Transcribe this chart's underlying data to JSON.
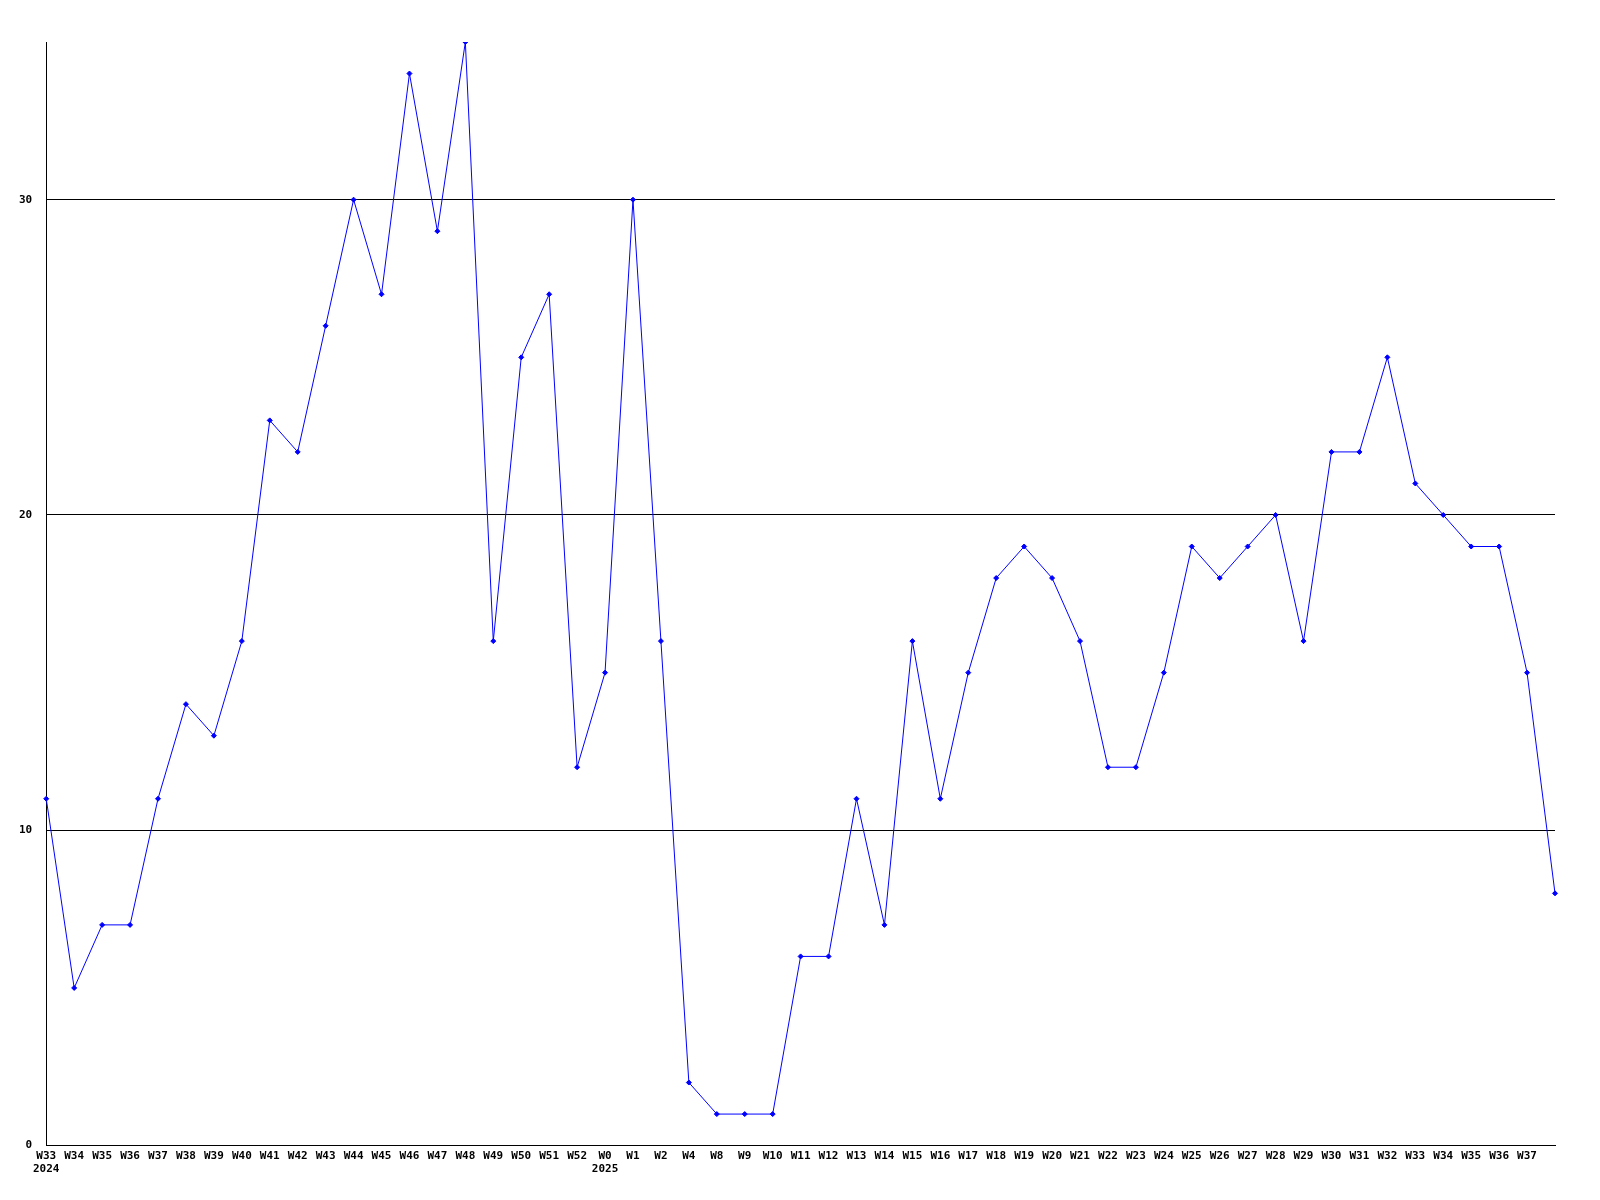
{
  "chart_data": {
    "type": "line",
    "categories": [
      "W33\n2024",
      "W34",
      "W35",
      "W36",
      "W37",
      "W38",
      "W39",
      "W40",
      "W41",
      "W42",
      "W43",
      "W44",
      "W45",
      "W46",
      "W47",
      "W48",
      "W49",
      "W50",
      "W51",
      "W52",
      "W0\n2025",
      "W1",
      "W2",
      "W4",
      "W8",
      "W9",
      "W10",
      "W11",
      "W12",
      "W13",
      "W14",
      "W15",
      "W16",
      "W17",
      "W18",
      "W19",
      "W20",
      "W21",
      "W22",
      "W23",
      "W24",
      "W25",
      "W26",
      "W27",
      "W28",
      "W29",
      "W30",
      "W31",
      "W32",
      "W33",
      "W34",
      "W35",
      "W36",
      "W37",
      null
    ],
    "series": [
      {
        "color": "#0000ff",
        "values": [
          11,
          5,
          7,
          7,
          11,
          14,
          13,
          16,
          23,
          22,
          26,
          30,
          27,
          34,
          29,
          35,
          16,
          25,
          27,
          12,
          15,
          30,
          16,
          2,
          1,
          1,
          1,
          6,
          6,
          11,
          7,
          16,
          11,
          15,
          18,
          19,
          18,
          16,
          12,
          12,
          15,
          19,
          18,
          19,
          20,
          16,
          22,
          22,
          25,
          21,
          20,
          19,
          19,
          15,
          8
        ]
      }
    ],
    "ylim": [
      0,
      35
    ],
    "yticks": [
      0,
      10,
      20,
      30
    ],
    "grid": "y",
    "legend": false,
    "marker": "diamond",
    "line_style": "solid"
  }
}
